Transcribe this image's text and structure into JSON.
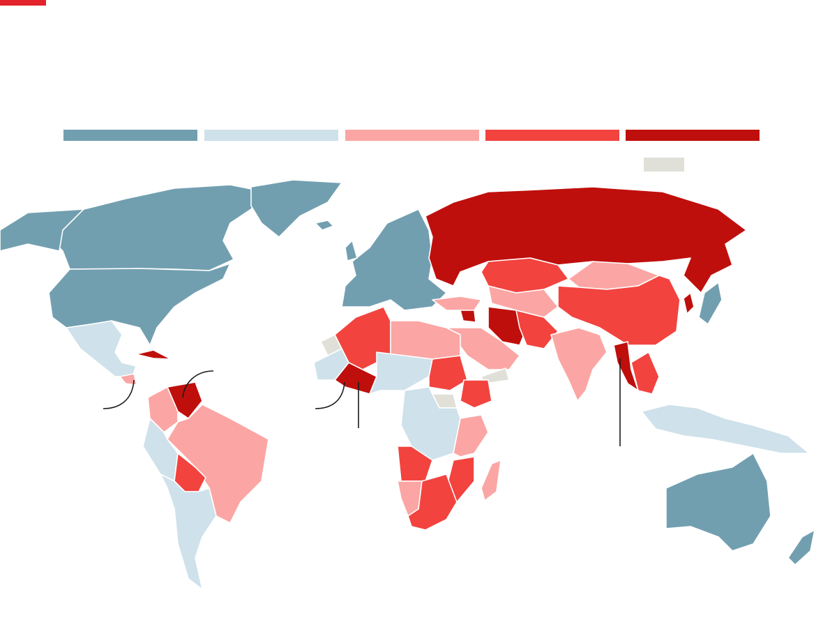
{
  "accent_color": "#e3232b",
  "legend": {
    "categories": [
      {
        "key": "c1",
        "color": "#729fb0"
      },
      {
        "key": "c2",
        "color": "#cfe1ea"
      },
      {
        "key": "c3",
        "color": "#fba6a4"
      },
      {
        "key": "c4",
        "color": "#f2433f"
      },
      {
        "key": "c5",
        "color": "#bf0f0c"
      }
    ],
    "no_data": {
      "key": "nodata",
      "color": "#e0e0d8"
    }
  }
}
